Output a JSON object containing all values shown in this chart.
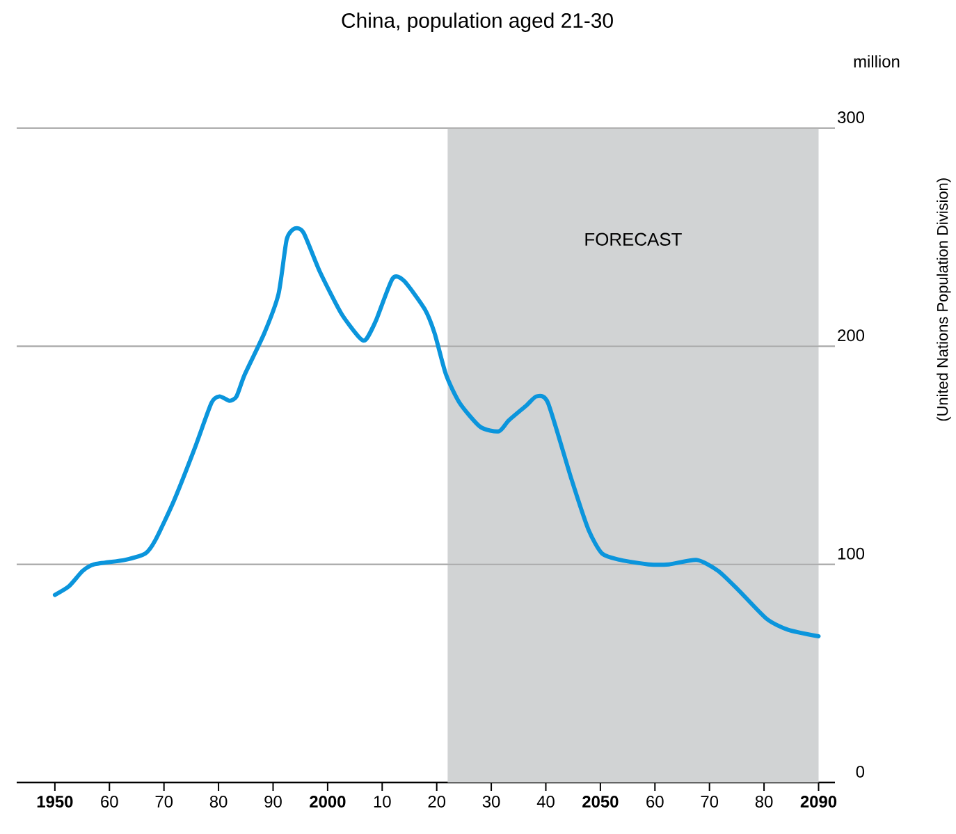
{
  "chart_data": {
    "type": "line",
    "title": "China, population aged 21-30",
    "ylabel": "million",
    "annotations": [
      "(United Nations Population Division)"
    ],
    "x": [
      1950,
      1952.6,
      1955.1,
      1957.2,
      1962.8,
      1966.6,
      1968.4,
      1971.8,
      1975.6,
      1978.7,
      1980.2,
      1982,
      1983.3,
      1984.8,
      1988.4,
      1991,
      1992.5,
      1994,
      1995.6,
      1998.6,
      2002.5,
      2005.8,
      2007,
      2008.9,
      2011.9,
      2014,
      2017.8,
      2019.6,
      2021.7,
      2024.2,
      2028,
      2031.4,
      2033.2,
      2036.5,
      2038.3,
      2040.4,
      2044.7,
      2047.8,
      2050.3,
      2053.7,
      2058.8,
      2062.6,
      2067.7,
      2071.6,
      2075.4,
      2080.5,
      2084.4,
      2090
    ],
    "series": [
      {
        "color": "#0b95dc",
        "values": [
          86,
          90,
          97,
          100,
          102,
          105,
          111,
          129,
          153,
          174,
          177,
          175,
          177,
          187,
          206,
          224,
          249,
          254,
          252,
          234,
          215,
          204,
          203,
          212,
          231,
          230,
          217,
          206,
          187,
          174,
          163,
          161,
          166,
          173,
          177,
          174,
          139,
          116,
          105,
          102,
          100,
          100,
          102,
          97,
          88,
          75,
          70,
          67
        ]
      }
    ],
    "xlim": [
      1943,
      2093
    ],
    "xticks": [
      {
        "value": 1950,
        "label": "**1950**"
      },
      {
        "value": 1960,
        "label": "60"
      },
      {
        "value": 1970,
        "label": "70"
      },
      {
        "value": 1980,
        "label": "80"
      },
      {
        "value": 1990,
        "label": "90"
      },
      {
        "value": 2000,
        "label": "**2000**"
      },
      {
        "value": 2010,
        "label": "10"
      },
      {
        "value": 2020,
        "label": "20"
      },
      {
        "value": 2030,
        "label": "30"
      },
      {
        "value": 2040,
        "label": "40"
      },
      {
        "value": 2050,
        "label": "**2050**"
      },
      {
        "value": 2060,
        "label": "60"
      },
      {
        "value": 2070,
        "label": "70"
      },
      {
        "value": 2080,
        "label": "80"
      },
      {
        "value": 2090,
        "label": "**2090**"
      }
    ],
    "ylim": [
      0,
      300
    ],
    "yticks": [
      0,
      100,
      200,
      300
    ],
    "grid": "y",
    "bands": [
      {
        "axis": "x",
        "from": 2022,
        "to": 2090,
        "label": "FORECAST",
        "color": "#d1d3d4"
      }
    ]
  }
}
